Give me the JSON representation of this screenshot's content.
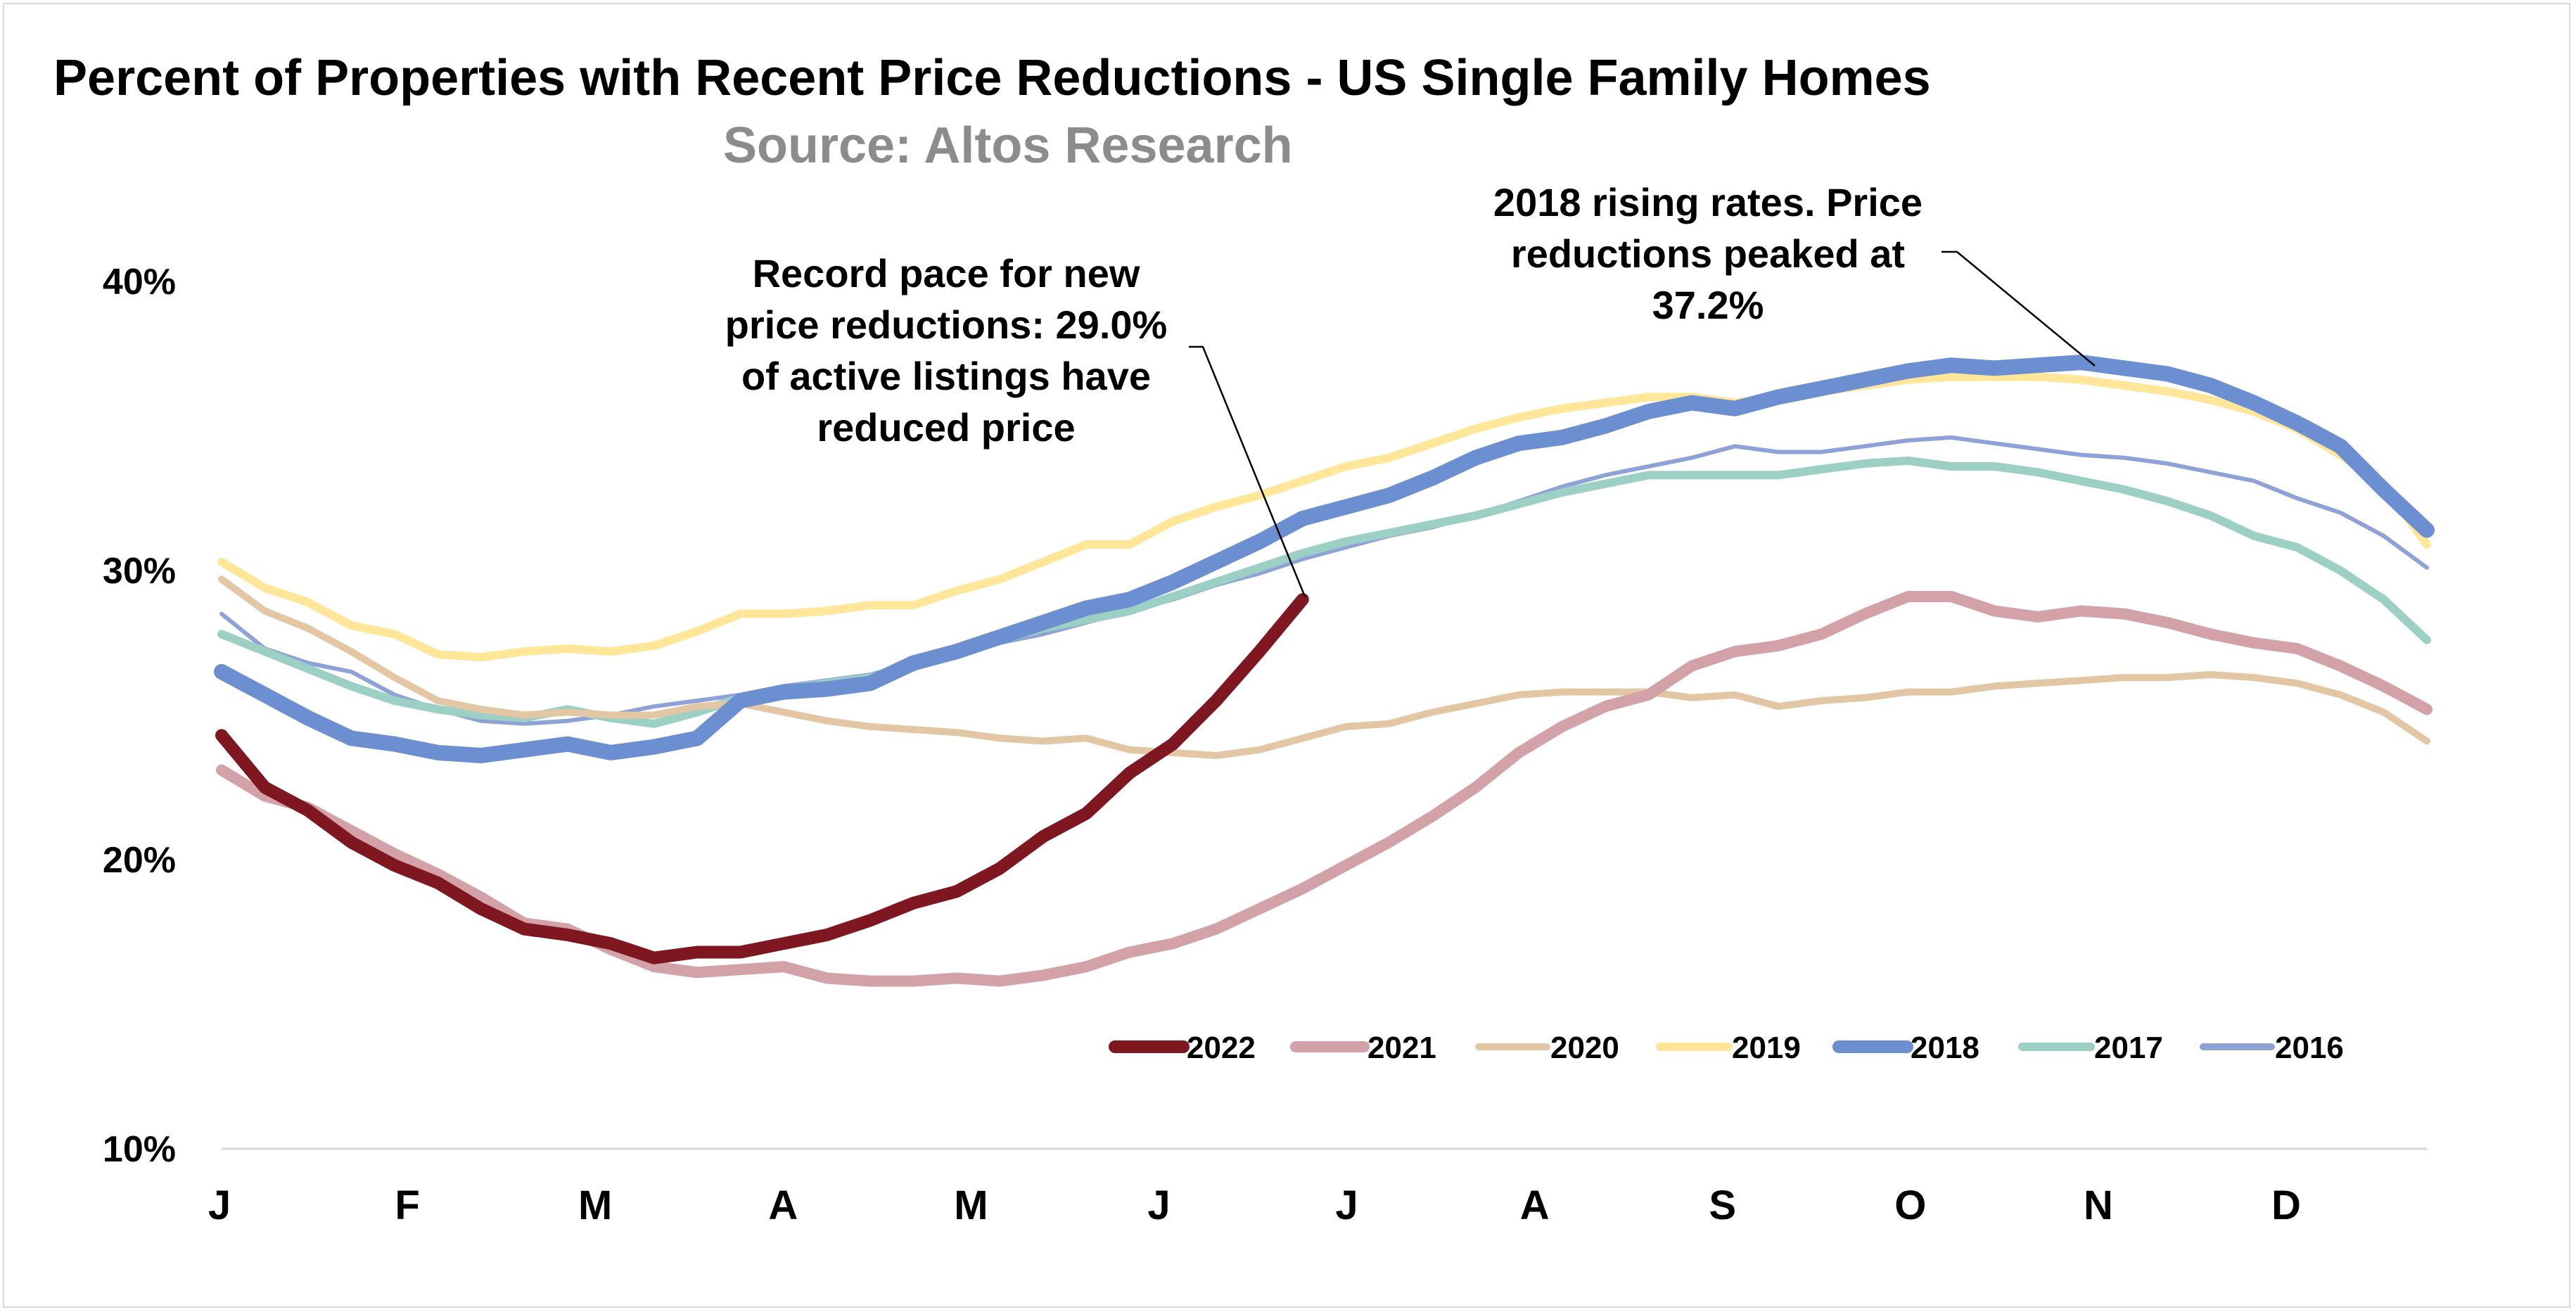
{
  "chart_data": {
    "type": "line",
    "title": "Percent of Properties with Recent Price Reductions - US Single Family Homes",
    "subtitle": "Source: Altos Research",
    "xlabel": "",
    "ylabel": "",
    "x_ticks": [
      "J",
      "F",
      "M",
      "A",
      "M",
      "J",
      "J",
      "A",
      "S",
      "O",
      "N",
      "D"
    ],
    "y_ticks": [
      "10%",
      "20%",
      "30%",
      "40%"
    ],
    "ylim": [
      10,
      40
    ],
    "xlim": [
      1,
      52
    ],
    "grid": false,
    "legend_position": "bottom-right",
    "annotations": [
      {
        "text": [
          "Record pace for new",
          "price reductions: 29.0%",
          "of active listings have",
          "reduced price"
        ]
      },
      {
        "text": [
          "2018 rising rates. Price",
          "reductions peaked at",
          "37.2%"
        ]
      }
    ],
    "series": [
      {
        "name": "2022",
        "color": "#7f1720",
        "width": 18,
        "values": [
          24.3,
          22.5,
          21.7,
          20.6,
          19.8,
          19.2,
          18.3,
          17.6,
          17.4,
          17.1,
          16.6,
          16.8,
          16.8,
          17.1,
          17.4,
          17.9,
          18.5,
          18.9,
          19.7,
          20.8,
          21.6,
          23.0,
          24.0,
          25.5,
          27.2,
          29.0
        ]
      },
      {
        "name": "2021",
        "color": "#d3a2a8",
        "width": 16,
        "values": [
          23.1,
          22.2,
          21.8,
          21.0,
          20.2,
          19.5,
          18.7,
          17.8,
          17.6,
          16.9,
          16.3,
          16.1,
          16.2,
          16.3,
          15.9,
          15.8,
          15.8,
          15.9,
          15.8,
          16.0,
          16.3,
          16.8,
          17.1,
          17.6,
          18.3,
          19.0,
          19.8,
          20.6,
          21.5,
          22.5,
          23.7,
          24.6,
          25.3,
          25.7,
          26.7,
          27.2,
          27.4,
          27.8,
          28.5,
          29.1,
          29.1,
          28.6,
          28.4,
          28.6,
          28.5,
          28.2,
          27.8,
          27.5,
          27.3,
          26.7,
          26.0,
          25.2
        ]
      },
      {
        "name": "2020",
        "color": "#e3c6a4",
        "width": 10,
        "values": [
          29.7,
          28.6,
          28.0,
          27.2,
          26.3,
          25.5,
          25.2,
          25.0,
          25.1,
          25.0,
          25.0,
          25.3,
          25.4,
          25.1,
          24.8,
          24.6,
          24.5,
          24.4,
          24.2,
          24.1,
          24.2,
          23.8,
          23.7,
          23.6,
          23.8,
          24.2,
          24.6,
          24.7,
          25.1,
          25.4,
          25.7,
          25.8,
          25.8,
          25.8,
          25.6,
          25.7,
          25.3,
          25.5,
          25.6,
          25.8,
          25.8,
          26.0,
          26.1,
          26.2,
          26.3,
          26.3,
          26.4,
          26.3,
          26.1,
          25.7,
          25.1,
          24.1
        ]
      },
      {
        "name": "2019",
        "color": "#ffe699",
        "width": 12,
        "values": [
          30.3,
          29.4,
          28.9,
          28.1,
          27.8,
          27.1,
          27.0,
          27.2,
          27.3,
          27.2,
          27.4,
          27.9,
          28.5,
          28.5,
          28.6,
          28.8,
          28.8,
          29.3,
          29.7,
          30.3,
          30.9,
          30.9,
          31.7,
          32.2,
          32.6,
          33.1,
          33.6,
          33.9,
          34.4,
          34.9,
          35.3,
          35.6,
          35.8,
          36.0,
          36.0,
          35.8,
          36.0,
          36.2,
          36.4,
          36.6,
          36.7,
          36.7,
          36.7,
          36.6,
          36.4,
          36.2,
          35.9,
          35.5,
          34.9,
          34.0,
          33.0,
          30.9
        ]
      },
      {
        "name": "2018",
        "color": "#6b8fd0",
        "width": 22,
        "values": [
          26.5,
          25.7,
          24.9,
          24.2,
          24.0,
          23.7,
          23.6,
          23.8,
          24.0,
          23.7,
          23.9,
          24.2,
          25.5,
          25.8,
          25.9,
          26.1,
          26.8,
          27.2,
          27.7,
          28.2,
          28.7,
          29.0,
          29.6,
          30.3,
          31.0,
          31.8,
          32.2,
          32.6,
          33.2,
          33.9,
          34.4,
          34.6,
          35.0,
          35.5,
          35.8,
          35.6,
          36.0,
          36.3,
          36.6,
          36.9,
          37.1,
          37.0,
          37.1,
          37.2,
          37.0,
          36.8,
          36.4,
          35.8,
          35.1,
          34.3,
          32.8,
          31.4
        ]
      },
      {
        "name": "2017",
        "color": "#9dd0c4",
        "width": 12,
        "values": [
          27.8,
          27.2,
          26.6,
          26.0,
          25.5,
          25.2,
          25.0,
          24.9,
          25.2,
          24.9,
          24.7,
          25.1,
          25.6,
          25.9,
          26.1,
          26.3,
          26.7,
          27.1,
          27.6,
          28.0,
          28.3,
          28.6,
          29.1,
          29.6,
          30.1,
          30.6,
          31.0,
          31.3,
          31.6,
          31.9,
          32.3,
          32.7,
          33.0,
          33.3,
          33.3,
          33.3,
          33.3,
          33.5,
          33.7,
          33.8,
          33.6,
          33.6,
          33.4,
          33.1,
          32.8,
          32.4,
          31.9,
          31.2,
          30.8,
          30.0,
          29.0,
          27.6
        ]
      },
      {
        "name": "2016",
        "color": "#8ea2d8",
        "width": 6,
        "values": [
          28.5,
          27.3,
          26.8,
          26.5,
          25.7,
          25.2,
          24.8,
          24.7,
          24.8,
          25.0,
          25.3,
          25.5,
          25.7,
          26.0,
          26.2,
          26.4,
          26.8,
          27.2,
          27.5,
          27.8,
          28.2,
          28.6,
          29.0,
          29.5,
          29.9,
          30.4,
          30.8,
          31.2,
          31.5,
          31.9,
          32.4,
          32.9,
          33.3,
          33.6,
          33.9,
          34.3,
          34.1,
          34.1,
          34.3,
          34.5,
          34.6,
          34.4,
          34.2,
          34.0,
          33.9,
          33.7,
          33.4,
          33.1,
          32.5,
          32.0,
          31.2,
          30.1
        ]
      }
    ]
  }
}
